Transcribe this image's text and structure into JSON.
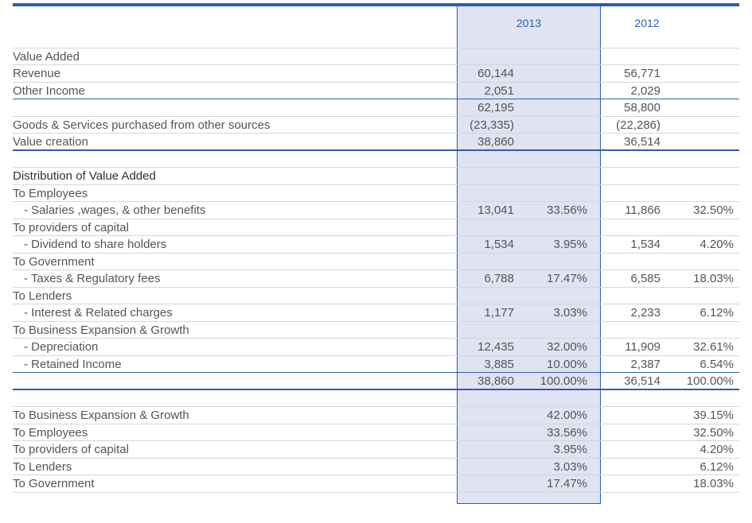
{
  "header": {
    "year_2013": "2013",
    "year_2012": "2012"
  },
  "colors": {
    "accent": "#2f5ea7",
    "highlight": "#dfe3f2"
  },
  "rows": [
    {
      "label": "",
      "v13": "",
      "p13": "",
      "v12": "",
      "p12": ""
    },
    {
      "label": "Value Added",
      "v13": "",
      "p13": "",
      "v12": "",
      "p12": ""
    },
    {
      "label": "Revenue",
      "v13": "60,144",
      "p13": "",
      "v12": "56,771",
      "p12": ""
    },
    {
      "label": "Other Income",
      "v13": "2,051",
      "p13": "",
      "v12": "2,029",
      "p12": ""
    },
    {
      "label": "",
      "v13": "62,195",
      "p13": "",
      "v12": "58,800",
      "p12": ""
    },
    {
      "label": "Goods & Services purchased from other sources",
      "v13": "(23,335)",
      "p13": "",
      "v12": "(22,286)",
      "p12": ""
    },
    {
      "label": "Value creation",
      "v13": "38,860",
      "p13": "",
      "v12": "36,514",
      "p12": ""
    },
    {
      "label": "",
      "v13": "",
      "p13": "",
      "v12": "",
      "p12": ""
    },
    {
      "label": "Distribution of Value Added",
      "v13": "",
      "p13": "",
      "v12": "",
      "p12": ""
    },
    {
      "label": "To Employees",
      "v13": "",
      "p13": "",
      "v12": "",
      "p12": ""
    },
    {
      "label": "- Salaries ,wages, & other benefits",
      "v13": "13,041",
      "p13": "33.56%",
      "v12": "11,866",
      "p12": "32.50%"
    },
    {
      "label": "To providers of capital",
      "v13": "",
      "p13": "",
      "v12": "",
      "p12": ""
    },
    {
      "label": "- Dividend to share holders",
      "v13": "1,534",
      "p13": "3.95%",
      "v12": "1,534",
      "p12": "4.20%"
    },
    {
      "label": "To Government",
      "v13": "",
      "p13": "",
      "v12": "",
      "p12": ""
    },
    {
      "label": "- Taxes & Regulatory fees",
      "v13": "6,788",
      "p13": "17.47%",
      "v12": "6,585",
      "p12": "18.03%"
    },
    {
      "label": "To Lenders",
      "v13": "",
      "p13": "",
      "v12": "",
      "p12": ""
    },
    {
      "label": "- Interest & Related charges",
      "v13": "1,177",
      "p13": "3.03%",
      "v12": "2,233",
      "p12": "6.12%"
    },
    {
      "label": "To Business Expansion & Growth",
      "v13": "",
      "p13": "",
      "v12": "",
      "p12": ""
    },
    {
      "label": "- Depreciation",
      "v13": "12,435",
      "p13": "32.00%",
      "v12": "11,909",
      "p12": "32.61%"
    },
    {
      "label": "- Retained Income",
      "v13": "3,885",
      "p13": "10.00%",
      "v12": "2,387",
      "p12": "6.54%"
    },
    {
      "label": "",
      "v13": "38,860",
      "p13": "100.00%",
      "v12": "36,514",
      "p12": "100.00%"
    },
    {
      "label": "",
      "v13": "",
      "p13": "",
      "v12": "",
      "p12": ""
    },
    {
      "label": "To Business Expansion & Growth",
      "v13": "",
      "p13": "42.00%",
      "v12": "",
      "p12": "39.15%"
    },
    {
      "label": "To Employees",
      "v13": "",
      "p13": "33.56%",
      "v12": "",
      "p12": "32.50%"
    },
    {
      "label": "To providers of capital",
      "v13": "",
      "p13": "3.95%",
      "v12": "",
      "p12": "4.20%"
    },
    {
      "label": "To Lenders",
      "v13": "",
      "p13": "3.03%",
      "v12": "",
      "p12": "6.12%"
    },
    {
      "label": "To Government",
      "v13": "",
      "p13": "17.47%",
      "v12": "",
      "p12": "18.03%"
    }
  ]
}
